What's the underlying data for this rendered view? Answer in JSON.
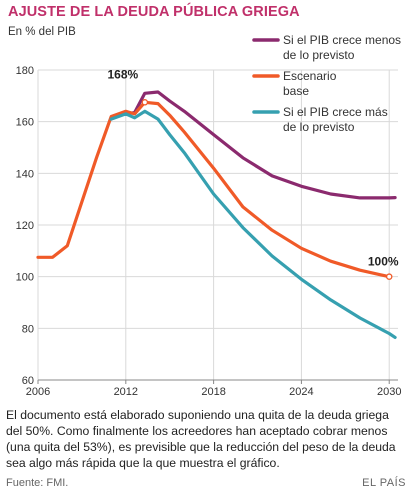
{
  "header": {
    "title": "AJUSTE DE LA DEUDA PÚBLICA GRIEGA",
    "unit": "En % del PIB"
  },
  "chart_data": {
    "type": "line",
    "title": "AJUSTE DE LA DEUDA PÚBLICA GRIEGA",
    "ylabel": "En % del PIB",
    "xlim": [
      2006,
      2030.6
    ],
    "ylim": [
      60,
      180
    ],
    "x_ticks": [
      2006,
      2012,
      2018,
      2024,
      2030
    ],
    "y_ticks": [
      60,
      80,
      100,
      120,
      140,
      160,
      180
    ],
    "grid": true,
    "legend_position": "top-right",
    "series": [
      {
        "name": "Si el PIB crece menos de lo previsto",
        "color": "#8b2a6e",
        "points": [
          [
            2012.0,
            163
          ],
          [
            2012.6,
            163.5
          ],
          [
            2013.3,
            171
          ],
          [
            2014.2,
            171.5
          ],
          [
            2015.0,
            168
          ],
          [
            2016.0,
            164
          ],
          [
            2018.0,
            155
          ],
          [
            2020.0,
            146
          ],
          [
            2022.0,
            139
          ],
          [
            2024.0,
            135
          ],
          [
            2026.0,
            132
          ],
          [
            2028.0,
            130.5
          ],
          [
            2030.0,
            130.5
          ],
          [
            2030.4,
            130.6
          ]
        ]
      },
      {
        "name": "Escenario base",
        "color": "#f05a28",
        "points": [
          [
            2006.0,
            107.5
          ],
          [
            2007.0,
            107.5
          ],
          [
            2008.0,
            112
          ],
          [
            2009.0,
            129
          ],
          [
            2010.0,
            146
          ],
          [
            2011.0,
            162
          ],
          [
            2012.0,
            164
          ],
          [
            2012.6,
            163
          ],
          [
            2013.3,
            167.5
          ],
          [
            2014.2,
            167
          ],
          [
            2015.0,
            162.5
          ],
          [
            2016.0,
            156
          ],
          [
            2018.0,
            142
          ],
          [
            2020.0,
            127
          ],
          [
            2022.0,
            118
          ],
          [
            2024.0,
            111
          ],
          [
            2026.0,
            106
          ],
          [
            2028.0,
            102.5
          ],
          [
            2030.0,
            100
          ]
        ]
      },
      {
        "name": "Si el PIB crece más de lo previsto",
        "color": "#36a0b0",
        "points": [
          [
            2011.0,
            161
          ],
          [
            2012.0,
            163
          ],
          [
            2012.6,
            161.5
          ],
          [
            2013.3,
            164
          ],
          [
            2014.2,
            161
          ],
          [
            2015.0,
            155
          ],
          [
            2016.0,
            148
          ],
          [
            2018.0,
            132
          ],
          [
            2020.0,
            119
          ],
          [
            2022.0,
            108
          ],
          [
            2024.0,
            99
          ],
          [
            2026.0,
            91
          ],
          [
            2028.0,
            84
          ],
          [
            2030.0,
            78
          ],
          [
            2030.4,
            76.5
          ]
        ]
      }
    ],
    "annotations": [
      {
        "label": "168%",
        "x": 2013.3,
        "y": 167.5,
        "series": "Escenario base"
      },
      {
        "label": "100%",
        "x": 2030.0,
        "y": 100,
        "series": "Escenario base"
      }
    ]
  },
  "caption": "El documento está elaborado suponiendo una quita de la deuda griega del 50%. Como finalmente los acreedores han aceptado cobrar menos (una quita del 53%), es previsible que la reducción del peso de la deuda sea algo más rápida que la que muestra el gráfico.",
  "footer": {
    "source": "Fuente: FMI.",
    "brand": "EL PAÍS"
  }
}
